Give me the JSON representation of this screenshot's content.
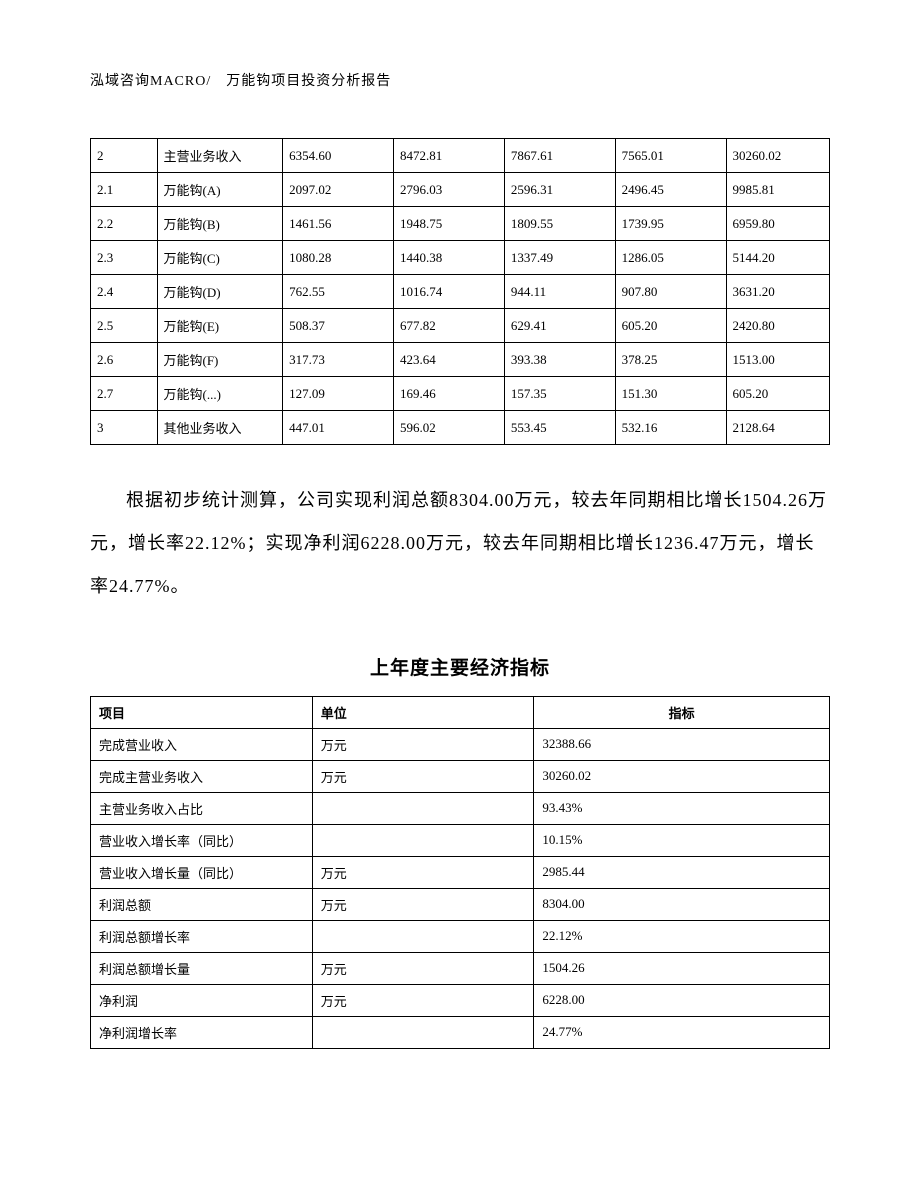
{
  "header": "泓域咨询MACRO/　万能钩项目投资分析报告",
  "table1": {
    "col_widths_pct": [
      9,
      17,
      15,
      15,
      15,
      15,
      14
    ],
    "border_color": "#000000",
    "font_size_pt": 10,
    "rows": [
      [
        "2",
        "主营业务收入",
        "6354.60",
        "8472.81",
        "7867.61",
        "7565.01",
        "30260.02"
      ],
      [
        "2.1",
        "万能钩(A)",
        "2097.02",
        "2796.03",
        "2596.31",
        "2496.45",
        "9985.81"
      ],
      [
        "2.2",
        "万能钩(B)",
        "1461.56",
        "1948.75",
        "1809.55",
        "1739.95",
        "6959.80"
      ],
      [
        "2.3",
        "万能钩(C)",
        "1080.28",
        "1440.38",
        "1337.49",
        "1286.05",
        "5144.20"
      ],
      [
        "2.4",
        "万能钩(D)",
        "762.55",
        "1016.74",
        "944.11",
        "907.80",
        "3631.20"
      ],
      [
        "2.5",
        "万能钩(E)",
        "508.37",
        "677.82",
        "629.41",
        "605.20",
        "2420.80"
      ],
      [
        "2.6",
        "万能钩(F)",
        "317.73",
        "423.64",
        "393.38",
        "378.25",
        "1513.00"
      ],
      [
        "2.7",
        "万能钩(...)",
        "127.09",
        "169.46",
        "157.35",
        "151.30",
        "605.20"
      ],
      [
        "3",
        "其他业务收入",
        "447.01",
        "596.02",
        "553.45",
        "532.16",
        "2128.64"
      ]
    ]
  },
  "paragraph": "根据初步统计测算，公司实现利润总额8304.00万元，较去年同期相比增长1504.26万元，增长率22.12%；实现净利润6228.00万元，较去年同期相比增长1236.47万元，增长率24.77%。",
  "subtitle": "上年度主要经济指标",
  "table2": {
    "columns": [
      "项目",
      "单位",
      "指标"
    ],
    "col_widths_pct": [
      30,
      30,
      40
    ],
    "border_color": "#000000",
    "font_size_pt": 10,
    "header_bold": true,
    "rows": [
      [
        "完成营业收入",
        "万元",
        "32388.66"
      ],
      [
        "完成主营业务收入",
        "万元",
        "30260.02"
      ],
      [
        "主营业务收入占比",
        "",
        "93.43%"
      ],
      [
        "营业收入增长率（同比）",
        "",
        "10.15%"
      ],
      [
        "营业收入增长量（同比）",
        "万元",
        "2985.44"
      ],
      [
        "利润总额",
        "万元",
        "8304.00"
      ],
      [
        "利润总额增长率",
        "",
        "22.12%"
      ],
      [
        "利润总额增长量",
        "万元",
        "1504.26"
      ],
      [
        "净利润",
        "万元",
        "6228.00"
      ],
      [
        "净利润增长率",
        "",
        "24.77%"
      ]
    ]
  },
  "colors": {
    "text": "#000000",
    "background": "#ffffff",
    "table_border": "#000000"
  },
  "typography": {
    "body_font": "SimSun",
    "header_size_pt": 11,
    "para_size_pt": 14,
    "subtitle_size_pt": 14,
    "table_size_pt": 10
  }
}
